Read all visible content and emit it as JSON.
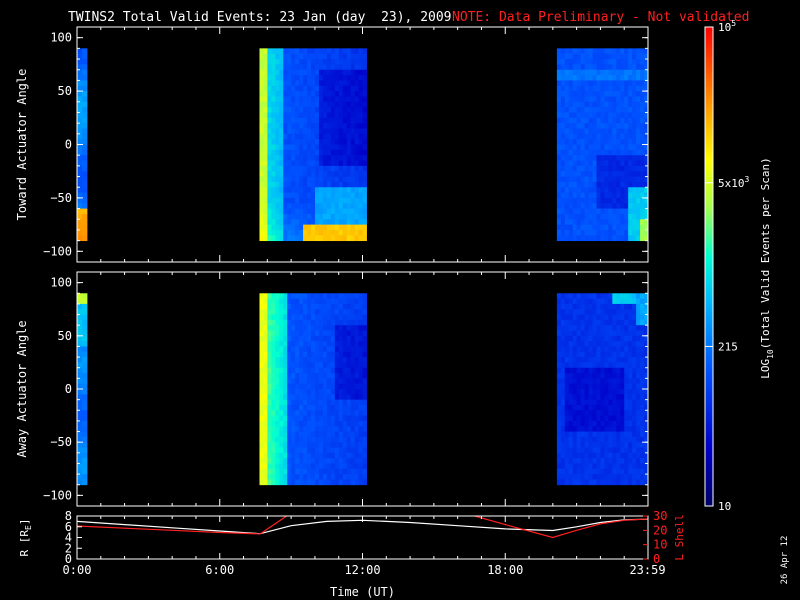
{
  "header": {
    "title": "TWINS2 Total Valid Events: 23 Jan (day  23), 2009",
    "note": "NOTE: Data Preliminary - Not validated",
    "note_color": "#ff2020"
  },
  "side_date": "26 Apr 12",
  "colorbar": {
    "label": "LOG10(Total Valid Events per Scan)",
    "label_main": "LOG",
    "label_sub": "10",
    "label_rest": "(Total Valid Events per Scan)",
    "ticks": [
      {
        "value": 10,
        "label": "10"
      },
      {
        "value": 215,
        "label": "215"
      },
      {
        "value": 5000,
        "label": "5x10",
        "sup": "3"
      },
      {
        "value": 100000,
        "label": "10",
        "sup": "5"
      }
    ],
    "range": [
      10,
      100000
    ],
    "scale": "log"
  },
  "chart_data": [
    {
      "type": "heatmap",
      "ylabel": "Toward Actuator Angle",
      "ylim": [
        -110,
        110
      ],
      "yticks": [
        -100,
        -50,
        0,
        50,
        100
      ],
      "x_range_hours": [
        0,
        24
      ],
      "data_blocks": [
        {
          "start": "0:00",
          "end": "0:25",
          "start_h": 0.0,
          "end_h": 0.42,
          "profile": "toward-1"
        },
        {
          "start": "7:40",
          "end": "12:10",
          "start_h": 7.67,
          "end_h": 12.17,
          "profile": "toward-2"
        },
        {
          "start": "20:10",
          "end": "24:00",
          "start_h": 20.17,
          "end_h": 24.0,
          "profile": "toward-3"
        }
      ],
      "angle_range": [
        -90,
        90
      ]
    },
    {
      "type": "heatmap",
      "ylabel": "Away Actuator Angle",
      "ylim": [
        -110,
        110
      ],
      "yticks": [
        -100,
        -50,
        0,
        50,
        100
      ],
      "x_range_hours": [
        0,
        24
      ],
      "data_blocks": [
        {
          "start": "0:00",
          "end": "0:25",
          "start_h": 0.0,
          "end_h": 0.42,
          "profile": "away-1"
        },
        {
          "start": "7:40",
          "end": "12:10",
          "start_h": 7.67,
          "end_h": 12.17,
          "profile": "away-2"
        },
        {
          "start": "20:10",
          "end": "24:00",
          "start_h": 20.17,
          "end_h": 24.0,
          "profile": "away-3"
        }
      ],
      "angle_range": [
        -90,
        90
      ]
    },
    {
      "type": "line",
      "ylabel_left": "R [RE]",
      "ylabel_left_main": "R [R",
      "ylabel_left_sub": "E",
      "ylabel_left_end": "]",
      "ylabel_right": "L Shell",
      "ylim_left": [
        0,
        8
      ],
      "yticks_left": [
        0,
        2,
        4,
        6,
        8
      ],
      "ylim_right": [
        0,
        30
      ],
      "yticks_right": [
        0,
        10,
        20,
        30
      ],
      "xlabel": "Time (UT)",
      "xticks": [
        {
          "h": 0,
          "label": "0:00"
        },
        {
          "h": 6,
          "label": "6:00"
        },
        {
          "h": 12,
          "label": "12:00"
        },
        {
          "h": 18,
          "label": "18:00"
        },
        {
          "h": 23.98,
          "label": "23:59"
        }
      ],
      "series": [
        {
          "axis": "left",
          "color": "#ffffff",
          "x": [
            0,
            2,
            4,
            6,
            7.7,
            9,
            10.5,
            12,
            14,
            16,
            18,
            20,
            21,
            22,
            23,
            24
          ],
          "y": [
            7.0,
            6.4,
            5.8,
            5.2,
            4.7,
            6.2,
            7.0,
            7.2,
            6.8,
            6.2,
            5.6,
            5.3,
            6.0,
            6.8,
            7.3,
            7.4
          ]
        },
        {
          "axis": "right",
          "color": "#ff2020",
          "x": [
            0,
            2,
            4,
            6,
            7.7,
            8.9,
            16.5,
            18,
            20,
            21,
            22,
            23,
            24
          ],
          "y": [
            23,
            21.5,
            20,
            18.5,
            17.5,
            31,
            31,
            24,
            15,
            20,
            24.5,
            27,
            28
          ]
        }
      ]
    }
  ]
}
